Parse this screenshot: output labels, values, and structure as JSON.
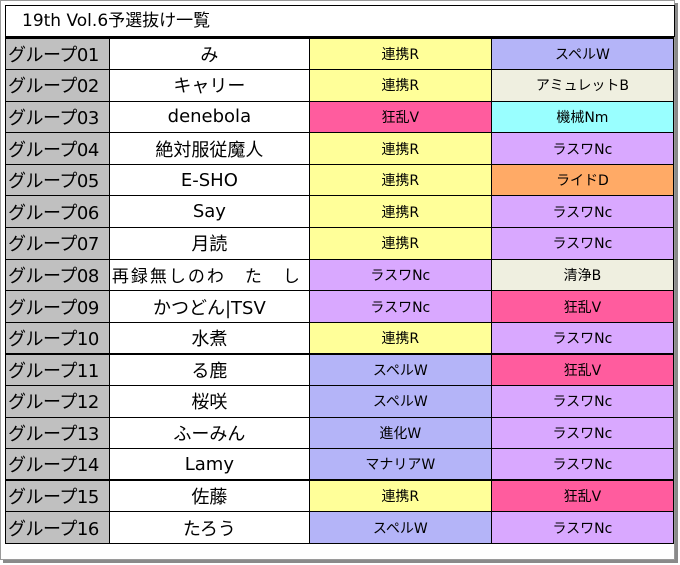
{
  "title": "19th Vol.6予選抜け一覧",
  "colors": {
    "連携R": "#ffff99",
    "スペルW": "#b4b4f8",
    "アミュレットB": "#efefe0",
    "狂乱V": "#ff5c9e",
    "機械Nm": "#99ffff",
    "ラスワNc": "#d9a8ff",
    "ライドD": "#ffaa66",
    "清浄B": "#efefe0",
    "進化W": "#b4b4f8",
    "マナリアW": "#b4b4f8",
    "group_bg": "#c0c0c0"
  },
  "rows": [
    {
      "group": "グループ01",
      "name": "み",
      "deck1": "連携R",
      "deck2": "スペルW"
    },
    {
      "group": "グループ02",
      "name": "キャリー",
      "deck1": "連携R",
      "deck2": "アミュレットB"
    },
    {
      "group": "グループ03",
      "name": "denebola",
      "deck1": "狂乱V",
      "deck2": "機械Nm"
    },
    {
      "group": "グループ04",
      "name": "絶対服従魔人",
      "deck1": "連携R",
      "deck2": "ラスワNc"
    },
    {
      "group": "グループ05",
      "name": "E-SHO",
      "deck1": "連携R",
      "deck2": "ライドD"
    },
    {
      "group": "グループ06",
      "name": "Say",
      "deck1": "連携R",
      "deck2": "ラスワNc"
    },
    {
      "group": "グループ07",
      "name": "月読",
      "deck1": "連携R",
      "deck2": "ラスワNc"
    },
    {
      "group": "グループ08",
      "name": "再録無しのわ　た　し",
      "deck1": "ラスワNc",
      "deck2": "清浄B"
    },
    {
      "group": "グループ09",
      "name": "かつどん|TSV",
      "deck1": "ラスワNc",
      "deck2": "狂乱V"
    },
    {
      "group": "グループ10",
      "name": "水煮",
      "deck1": "連携R",
      "deck2": "ラスワNc"
    },
    {
      "group": "グループ11",
      "name": "る鹿",
      "deck1": "スペルW",
      "deck2": "狂乱V"
    },
    {
      "group": "グループ12",
      "name": "桜咲",
      "deck1": "スペルW",
      "deck2": "ラスワNc"
    },
    {
      "group": "グループ13",
      "name": "ふーみん",
      "deck1": "進化W",
      "deck2": "ラスワNc"
    },
    {
      "group": "グループ14",
      "name": "Lamy",
      "deck1": "マナリアW",
      "deck2": "ラスワNc"
    },
    {
      "group": "グループ15",
      "name": "佐藤",
      "deck1": "連携R",
      "deck2": "狂乱V"
    },
    {
      "group": "グループ16",
      "name": "たろう",
      "deck1": "スペルW",
      "deck2": "ラスワNc"
    }
  ]
}
